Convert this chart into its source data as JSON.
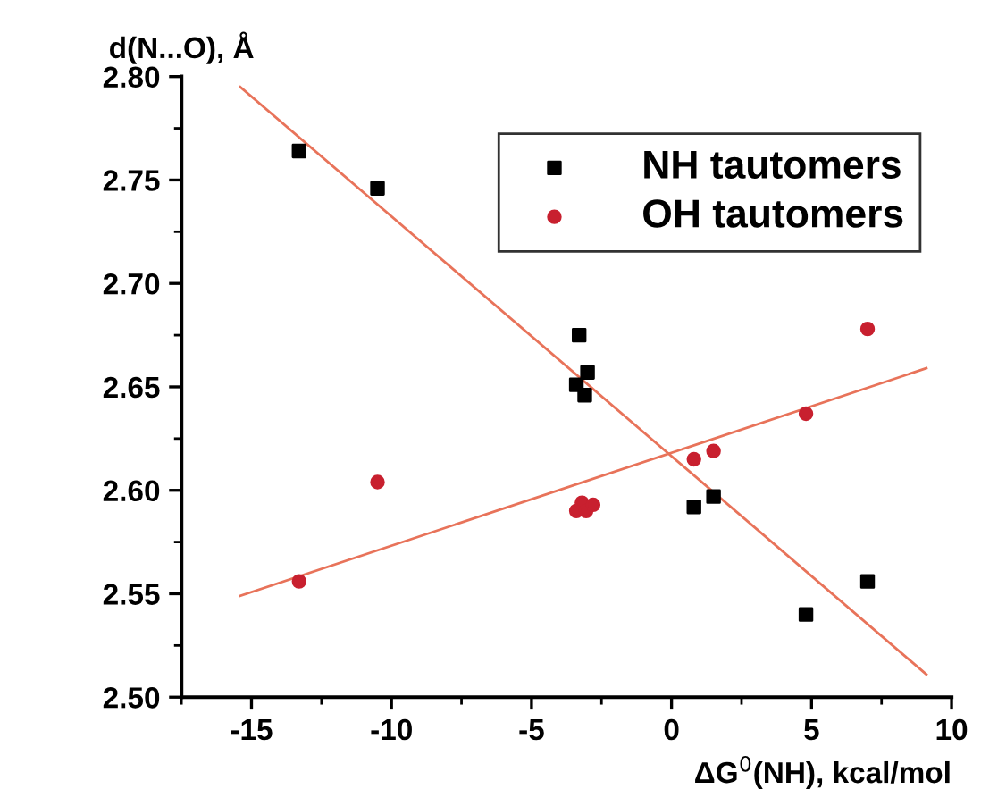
{
  "chart_data": {
    "type": "scatter",
    "xlabel": "ΔG$^{0}$(NH), kcal/mol",
    "ylabel": "d(N...O), Å",
    "xlim": [
      -17.5,
      10
    ],
    "ylim": [
      2.5,
      2.8
    ],
    "xticks": [
      -15,
      -10,
      -5,
      0,
      5,
      10
    ],
    "yticks": [
      {
        "value": 2.5,
        "label": "2.50"
      },
      {
        "value": 2.55,
        "label": "2.55"
      },
      {
        "value": 2.6,
        "label": "2.60"
      },
      {
        "value": 2.65,
        "label": "2.65"
      },
      {
        "value": 2.7,
        "label": "2.70"
      },
      {
        "value": 2.75,
        "label": "2.75"
      },
      {
        "value": 2.8,
        "label": "2.80"
      }
    ],
    "legend": "top right",
    "grid": false,
    "series": [
      {
        "name": "NH tautomers",
        "color": "#000000",
        "marker": "square",
        "x": [
          -13.3,
          -10.5,
          -3.3,
          -3.4,
          -3.0,
          -3.1,
          0.8,
          1.5,
          4.8,
          7.0
        ],
        "values": [
          2.764,
          2.746,
          2.675,
          2.651,
          2.657,
          2.646,
          2.592,
          2.597,
          2.54,
          2.556
        ]
      },
      {
        "name": "OH tautomers",
        "color": "#c8202f",
        "marker": "circle",
        "x": [
          -13.3,
          -10.5,
          -3.4,
          -3.2,
          -3.05,
          -2.8,
          0.8,
          1.5,
          4.8,
          7.0
        ],
        "values": [
          2.556,
          2.604,
          2.59,
          2.594,
          2.59,
          2.593,
          2.615,
          2.619,
          2.637,
          2.678
        ]
      },
      {
        "type": "line",
        "color": "#e8735a",
        "x": [
          -15.4,
          9.1
        ],
        "values": [
          2.795,
          2.511
        ]
      },
      {
        "type": "line",
        "color": "#e8735a",
        "x": [
          -15.4,
          9.1
        ],
        "values": [
          2.549,
          2.659
        ]
      }
    ]
  }
}
